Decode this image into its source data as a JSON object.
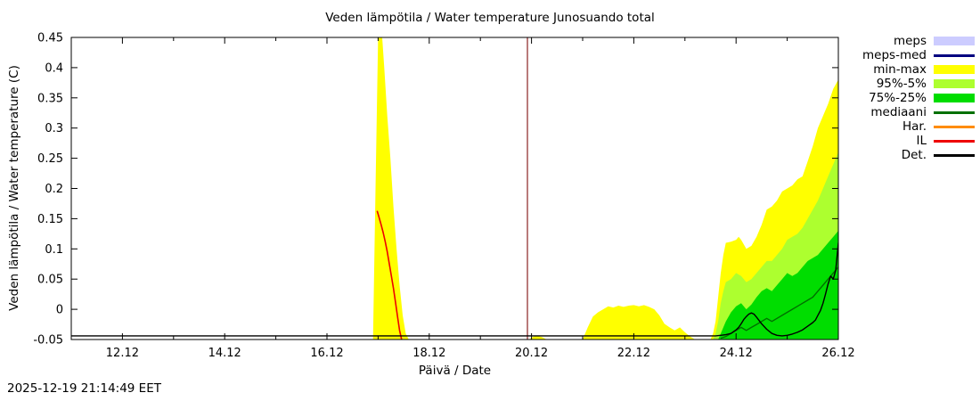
{
  "chart_data": {
    "type": "area",
    "title": "Veden lämpötila / Water temperature Junosuando total",
    "xlabel": "Päivä / Date",
    "ylabel": "Veden lämpötila / Water temperature (C)",
    "timestamp": "2025-12-19 21:14:49 EET",
    "xlim": [
      11.0,
      26.0
    ],
    "ylim": [
      -0.05,
      0.45
    ],
    "grid": false,
    "legend_position": "outside-right-top",
    "x_major_ticks": [
      {
        "v": 12,
        "label": "12.12"
      },
      {
        "v": 14,
        "label": "14.12"
      },
      {
        "v": 16,
        "label": "16.12"
      },
      {
        "v": 18,
        "label": "18.12"
      },
      {
        "v": 20,
        "label": "20.12"
      },
      {
        "v": 22,
        "label": "22.12"
      },
      {
        "v": 24,
        "label": "24.12"
      },
      {
        "v": 26,
        "label": "26.12"
      }
    ],
    "x_minor_ticks": [
      13,
      15,
      17,
      19,
      21,
      23,
      25
    ],
    "y_ticks": [
      {
        "v": -0.05,
        "label": "-0.05"
      },
      {
        "v": 0.0,
        "label": "0"
      },
      {
        "v": 0.05,
        "label": "0.05"
      },
      {
        "v": 0.1,
        "label": "0.1"
      },
      {
        "v": 0.15,
        "label": "0.15"
      },
      {
        "v": 0.2,
        "label": "0.2"
      },
      {
        "v": 0.25,
        "label": "0.25"
      },
      {
        "v": 0.3,
        "label": "0.3"
      },
      {
        "v": 0.35,
        "label": "0.35"
      },
      {
        "v": 0.4,
        "label": "0.4"
      },
      {
        "v": 0.45,
        "label": "0.45"
      }
    ],
    "now_line": {
      "x": 19.92,
      "color": "#8b2222"
    },
    "bands": [
      {
        "name": "min-max",
        "color": "#ffff00",
        "x": [
          16.9,
          16.95,
          17.0,
          17.08,
          17.12,
          17.18,
          17.24,
          17.3,
          17.36,
          17.42,
          17.48,
          17.54,
          17.6,
          19.95,
          20.02,
          20.1,
          20.2,
          20.3,
          21.0,
          21.1,
          21.2,
          21.3,
          21.4,
          21.5,
          21.6,
          21.7,
          21.8,
          21.9,
          22.0,
          22.1,
          22.2,
          22.3,
          22.4,
          22.5,
          22.6,
          22.7,
          22.8,
          22.9,
          23.0,
          23.1,
          23.2,
          23.5,
          23.55,
          23.6,
          23.65,
          23.7,
          23.75,
          23.8,
          23.9,
          24.0,
          24.05,
          24.1,
          24.2,
          24.3,
          24.4,
          24.5,
          24.6,
          24.7,
          24.8,
          24.9,
          25.0,
          25.1,
          25.2,
          25.3,
          25.4,
          25.5,
          25.6,
          25.7,
          25.8,
          25.9,
          26.0
        ],
        "top": [
          -0.05,
          0.2,
          0.45,
          0.45,
          0.4,
          0.32,
          0.25,
          0.17,
          0.1,
          0.04,
          -0.01,
          -0.04,
          -0.05,
          -0.05,
          -0.046,
          -0.044,
          -0.046,
          -0.05,
          -0.05,
          -0.03,
          -0.012,
          -0.005,
          0.0,
          0.005,
          0.003,
          0.006,
          0.004,
          0.006,
          0.007,
          0.005,
          0.007,
          0.004,
          0.0,
          -0.01,
          -0.024,
          -0.03,
          -0.035,
          -0.03,
          -0.038,
          -0.045,
          -0.05,
          -0.05,
          -0.04,
          -0.02,
          0.02,
          0.06,
          0.09,
          0.11,
          0.112,
          0.115,
          0.12,
          0.115,
          0.1,
          0.105,
          0.12,
          0.14,
          0.165,
          0.17,
          0.18,
          0.195,
          0.2,
          0.205,
          0.215,
          0.22,
          0.245,
          0.27,
          0.3,
          0.32,
          0.34,
          0.365,
          0.38
        ]
      },
      {
        "name": "95%-5%",
        "color": "#adff2f",
        "x": [
          23.55,
          23.6,
          23.65,
          23.7,
          23.75,
          23.8,
          23.9,
          24.0,
          24.1,
          24.2,
          24.3,
          24.4,
          24.5,
          24.6,
          24.7,
          24.8,
          24.9,
          25.0,
          25.1,
          25.2,
          25.3,
          25.4,
          25.5,
          25.6,
          25.7,
          25.8,
          25.9,
          26.0
        ],
        "top": [
          -0.05,
          -0.04,
          -0.02,
          0.01,
          0.03,
          0.045,
          0.05,
          0.06,
          0.055,
          0.045,
          0.05,
          0.06,
          0.07,
          0.08,
          0.08,
          0.09,
          0.1,
          0.115,
          0.12,
          0.125,
          0.135,
          0.15,
          0.165,
          0.18,
          0.2,
          0.22,
          0.24,
          0.26
        ]
      },
      {
        "name": "75%-25%",
        "color": "#00dd00",
        "x": [
          23.65,
          23.7,
          23.75,
          23.8,
          23.9,
          24.0,
          24.1,
          24.2,
          24.3,
          24.4,
          24.5,
          24.6,
          24.7,
          24.8,
          24.9,
          25.0,
          25.1,
          25.2,
          25.3,
          25.4,
          25.5,
          25.6,
          25.7,
          25.8,
          25.9,
          26.0
        ],
        "top": [
          -0.05,
          -0.04,
          -0.03,
          -0.02,
          -0.005,
          0.005,
          0.01,
          0.0,
          0.008,
          0.02,
          0.03,
          0.035,
          0.03,
          0.04,
          0.05,
          0.06,
          0.055,
          0.06,
          0.07,
          0.08,
          0.085,
          0.09,
          0.1,
          0.11,
          0.12,
          0.13
        ]
      }
    ],
    "lines": [
      {
        "name": "mediaani",
        "color": "#007000",
        "width": 1.4,
        "x": [
          23.7,
          23.8,
          23.9,
          24.0,
          24.1,
          24.2,
          24.3,
          24.4,
          24.5,
          24.6,
          24.7,
          24.8,
          24.9,
          25.0,
          25.1,
          25.2,
          25.3,
          25.4,
          25.5,
          25.6,
          25.7,
          25.8,
          25.9,
          26.0
        ],
        "y": [
          -0.048,
          -0.045,
          -0.04,
          -0.035,
          -0.03,
          -0.035,
          -0.03,
          -0.025,
          -0.02,
          -0.015,
          -0.02,
          -0.015,
          -0.01,
          -0.005,
          0.0,
          0.005,
          0.01,
          0.015,
          0.02,
          0.03,
          0.04,
          0.05,
          0.06,
          0.07
        ]
      },
      {
        "name": "IL",
        "color": "#ee0000",
        "width": 1.6,
        "x": [
          16.98,
          17.02,
          17.06,
          17.1,
          17.14,
          17.18,
          17.22,
          17.26,
          17.3,
          17.34,
          17.38,
          17.42,
          17.46
        ],
        "y": [
          0.163,
          0.152,
          0.14,
          0.127,
          0.112,
          0.095,
          0.075,
          0.055,
          0.035,
          0.012,
          -0.012,
          -0.035,
          -0.05
        ]
      },
      {
        "name": "Det.",
        "color": "#000000",
        "width": 1.4,
        "x": [
          11.0,
          16.0,
          20.0,
          23.0,
          23.6,
          23.7,
          23.8,
          23.9,
          24.0,
          24.05,
          24.1,
          24.15,
          24.2,
          24.25,
          24.3,
          24.35,
          24.4,
          24.5,
          24.6,
          24.7,
          24.8,
          24.9,
          25.0,
          25.1,
          25.2,
          25.3,
          25.4,
          25.5,
          25.55,
          25.6,
          25.65,
          25.7,
          25.75,
          25.8,
          25.85,
          25.9,
          25.95,
          26.0
        ],
        "y": [
          -0.044,
          -0.044,
          -0.044,
          -0.044,
          -0.044,
          -0.043,
          -0.042,
          -0.04,
          -0.034,
          -0.03,
          -0.024,
          -0.017,
          -0.012,
          -0.008,
          -0.006,
          -0.008,
          -0.013,
          -0.024,
          -0.033,
          -0.04,
          -0.043,
          -0.044,
          -0.043,
          -0.041,
          -0.038,
          -0.034,
          -0.028,
          -0.022,
          -0.018,
          -0.01,
          -0.002,
          0.01,
          0.025,
          0.042,
          0.055,
          0.05,
          0.065,
          0.11
        ]
      }
    ],
    "legend": [
      {
        "label": "meps",
        "color": "#ccccff",
        "kind": "band"
      },
      {
        "label": "meps-med",
        "color": "#000080",
        "kind": "line"
      },
      {
        "label": "min-max",
        "color": "#ffff00",
        "kind": "band"
      },
      {
        "label": "95%-5%",
        "color": "#adff2f",
        "kind": "band"
      },
      {
        "label": "75%-25%",
        "color": "#00dd00",
        "kind": "band"
      },
      {
        "label": "mediaani",
        "color": "#007000",
        "kind": "line"
      },
      {
        "label": "Har.",
        "color": "#ff8c00",
        "kind": "line"
      },
      {
        "label": "IL",
        "color": "#ee0000",
        "kind": "line"
      },
      {
        "label": "Det.",
        "color": "#000000",
        "kind": "line"
      }
    ]
  }
}
